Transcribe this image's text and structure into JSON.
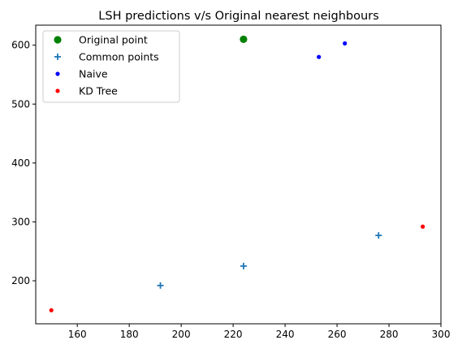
{
  "chart_data": {
    "type": "scatter",
    "title": "LSH predictions v/s Original nearest neighbours",
    "xlabel": "",
    "ylabel": "",
    "xlim": [
      144,
      300
    ],
    "ylim": [
      127,
      634
    ],
    "xticks": [
      160,
      180,
      200,
      220,
      240,
      260,
      280,
      300
    ],
    "yticks": [
      200,
      300,
      400,
      500,
      600
    ],
    "grid": false,
    "legend_position": "top-left",
    "series": [
      {
        "name": "Original point",
        "marker": "circle-large",
        "color": "#008000",
        "points": [
          {
            "x": 224,
            "y": 610
          }
        ]
      },
      {
        "name": "Common points",
        "marker": "plus",
        "color": "#1f77b4",
        "points": [
          {
            "x": 192,
            "y": 192
          },
          {
            "x": 224,
            "y": 225
          },
          {
            "x": 276,
            "y": 277
          }
        ]
      },
      {
        "name": "Naive",
        "marker": "dot",
        "color": "#0000ff",
        "points": [
          {
            "x": 253,
            "y": 580
          },
          {
            "x": 263,
            "y": 603
          }
        ]
      },
      {
        "name": "KD Tree",
        "marker": "dot",
        "color": "#ff0000",
        "points": [
          {
            "x": 150,
            "y": 150
          },
          {
            "x": 293,
            "y": 292
          }
        ]
      }
    ]
  }
}
